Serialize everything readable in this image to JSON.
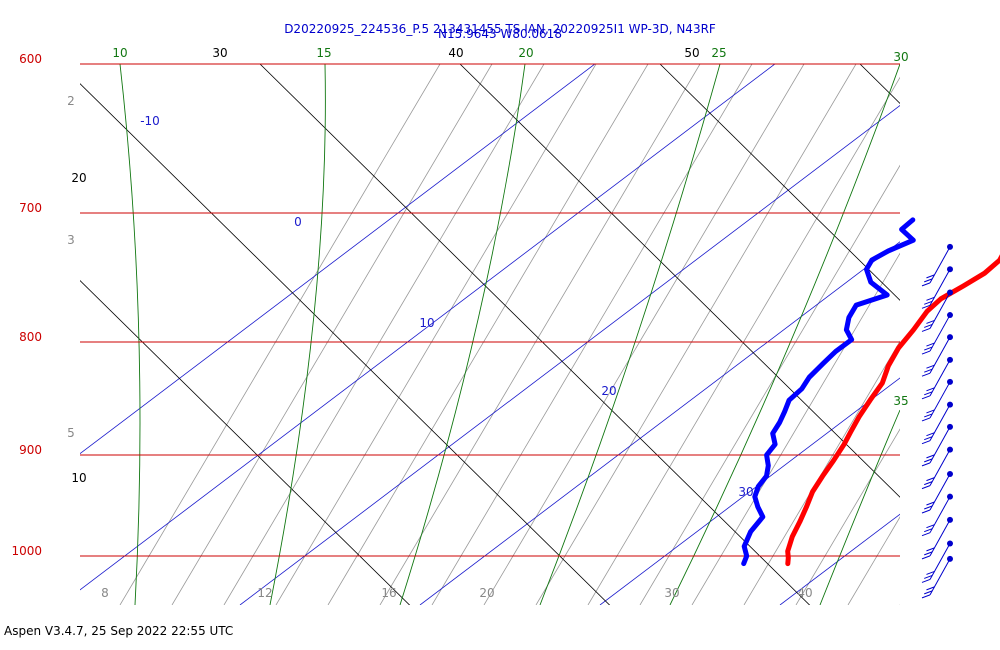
{
  "chart_data": {
    "type": "line",
    "subtype": "skew-t log-p",
    "title_line1": "D20220925_224536_P.5 213431455 TS IAN, 20220925I1 WP-3D, N43RF",
    "title_line2": "N15.9643 W80.0618",
    "footer": "Aspen V3.4.7, 25 Sep 2022  22:55 UTC",
    "pressure_levels": [
      {
        "p": 600,
        "label": "600"
      },
      {
        "p": 700,
        "label": "700"
      },
      {
        "p": 800,
        "label": "800"
      },
      {
        "p": 900,
        "label": "900"
      },
      {
        "p": 1000,
        "label": "1000"
      }
    ],
    "isotherms_top_labels": [
      {
        "t": 30,
        "label": "30"
      },
      {
        "t": 40,
        "label": "40"
      },
      {
        "t": 50,
        "label": "50"
      }
    ],
    "dry_adiabat_left_labels": [
      {
        "label": "20"
      },
      {
        "label": "10"
      }
    ],
    "moist_adiabats": [
      {
        "label": "10"
      },
      {
        "label": "15"
      },
      {
        "label": "20"
      },
      {
        "label": "25"
      },
      {
        "label": "30"
      },
      {
        "label": "35"
      }
    ],
    "isotherm_labels": [
      {
        "label": "-10"
      },
      {
        "label": "0"
      },
      {
        "label": "10"
      },
      {
        "label": "20"
      },
      {
        "label": "30"
      }
    ],
    "mixing_ratio_bottom_labels": [
      "8",
      "12",
      "16",
      "20",
      "30",
      "40"
    ],
    "mixing_ratio_left_labels": [
      "2",
      "3",
      "5"
    ],
    "series": [
      {
        "name": "temperature",
        "color": "#ff0000",
        "points": [
          [
            705,
            12.9
          ],
          [
            715,
            12.4
          ],
          [
            725,
            12.8
          ],
          [
            735,
            13.3
          ],
          [
            745,
            12.9
          ],
          [
            755,
            11.8
          ],
          [
            765,
            10.6
          ],
          [
            775,
            10.3
          ],
          [
            790,
            10.6
          ],
          [
            805,
            10.7
          ],
          [
            820,
            11.3
          ],
          [
            835,
            12.3
          ],
          [
            850,
            12.6
          ],
          [
            865,
            13.0
          ],
          [
            878,
            13.5
          ],
          [
            890,
            14.0
          ],
          [
            905,
            14.4
          ],
          [
            920,
            14.7
          ],
          [
            935,
            15.1
          ],
          [
            950,
            15.9
          ],
          [
            965,
            16.6
          ],
          [
            980,
            17.2
          ],
          [
            995,
            18.1
          ],
          [
            1002,
            18.8
          ],
          [
            1008,
            19.3
          ]
        ]
      },
      {
        "name": "dewpoint",
        "color": "#0000ff",
        "points": [
          [
            705,
            0.0
          ],
          [
            712,
            -0.3
          ],
          [
            720,
            2.0
          ],
          [
            728,
            0.3
          ],
          [
            735,
            -0.6
          ],
          [
            742,
            -0.3
          ],
          [
            752,
            1.4
          ],
          [
            762,
            4.4
          ],
          [
            770,
            2.0
          ],
          [
            780,
            2.4
          ],
          [
            790,
            3.3
          ],
          [
            798,
            4.8
          ],
          [
            808,
            4.2
          ],
          [
            818,
            4.0
          ],
          [
            830,
            3.8
          ],
          [
            840,
            4.1
          ],
          [
            850,
            3.8
          ],
          [
            860,
            4.4
          ],
          [
            870,
            4.9
          ],
          [
            880,
            5.2
          ],
          [
            890,
            6.5
          ],
          [
            900,
            6.6
          ],
          [
            910,
            7.8
          ],
          [
            920,
            8.6
          ],
          [
            930,
            8.7
          ],
          [
            940,
            9.3
          ],
          [
            950,
            10.6
          ],
          [
            960,
            12.1
          ],
          [
            975,
            12.2
          ],
          [
            990,
            12.9
          ],
          [
            1000,
            14.1
          ],
          [
            1008,
            14.5
          ]
        ]
      }
    ],
    "wind_barbs": [
      {
        "p": 725,
        "flags": 3
      },
      {
        "p": 742,
        "flags": 3
      },
      {
        "p": 760,
        "flags": 3
      },
      {
        "p": 778,
        "flags": 3
      },
      {
        "p": 796,
        "flags": 3
      },
      {
        "p": 815,
        "flags": 3
      },
      {
        "p": 834,
        "flags": 3
      },
      {
        "p": 854,
        "flags": 3
      },
      {
        "p": 874,
        "flags": 3
      },
      {
        "p": 895,
        "flags": 3
      },
      {
        "p": 918,
        "flags": 3
      },
      {
        "p": 940,
        "flags": 3
      },
      {
        "p": 963,
        "flags": 3
      },
      {
        "p": 987,
        "flags": 3
      },
      {
        "p": 1003,
        "flags": 3
      }
    ],
    "grid": true,
    "legend": "none"
  }
}
